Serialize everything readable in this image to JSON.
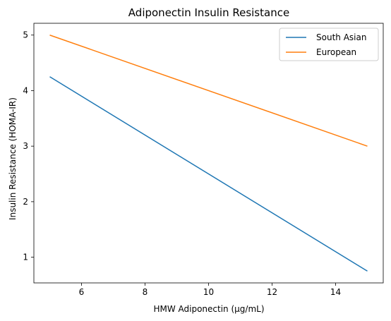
{
  "chart_data": {
    "type": "line",
    "title": "Adiponectin Insulin Resistance",
    "xlabel": "HMW Adiponectin (μg/mL)",
    "ylabel": "Insulin Resistance (HOMA-IR)",
    "x": [
      5,
      15
    ],
    "xlim": [
      4.5,
      15.5
    ],
    "ylim": [
      0.5375,
      5.2125
    ],
    "xticks": [
      6,
      8,
      10,
      12,
      14
    ],
    "yticks": [
      1,
      2,
      3,
      4,
      5
    ],
    "grid": false,
    "legend_position": "top-right",
    "series": [
      {
        "name": "South Asian",
        "color": "#1f77b4",
        "values": [
          4.25,
          0.75
        ]
      },
      {
        "name": "European",
        "color": "#ff7f0e",
        "values": [
          5.0,
          3.0
        ]
      }
    ]
  }
}
